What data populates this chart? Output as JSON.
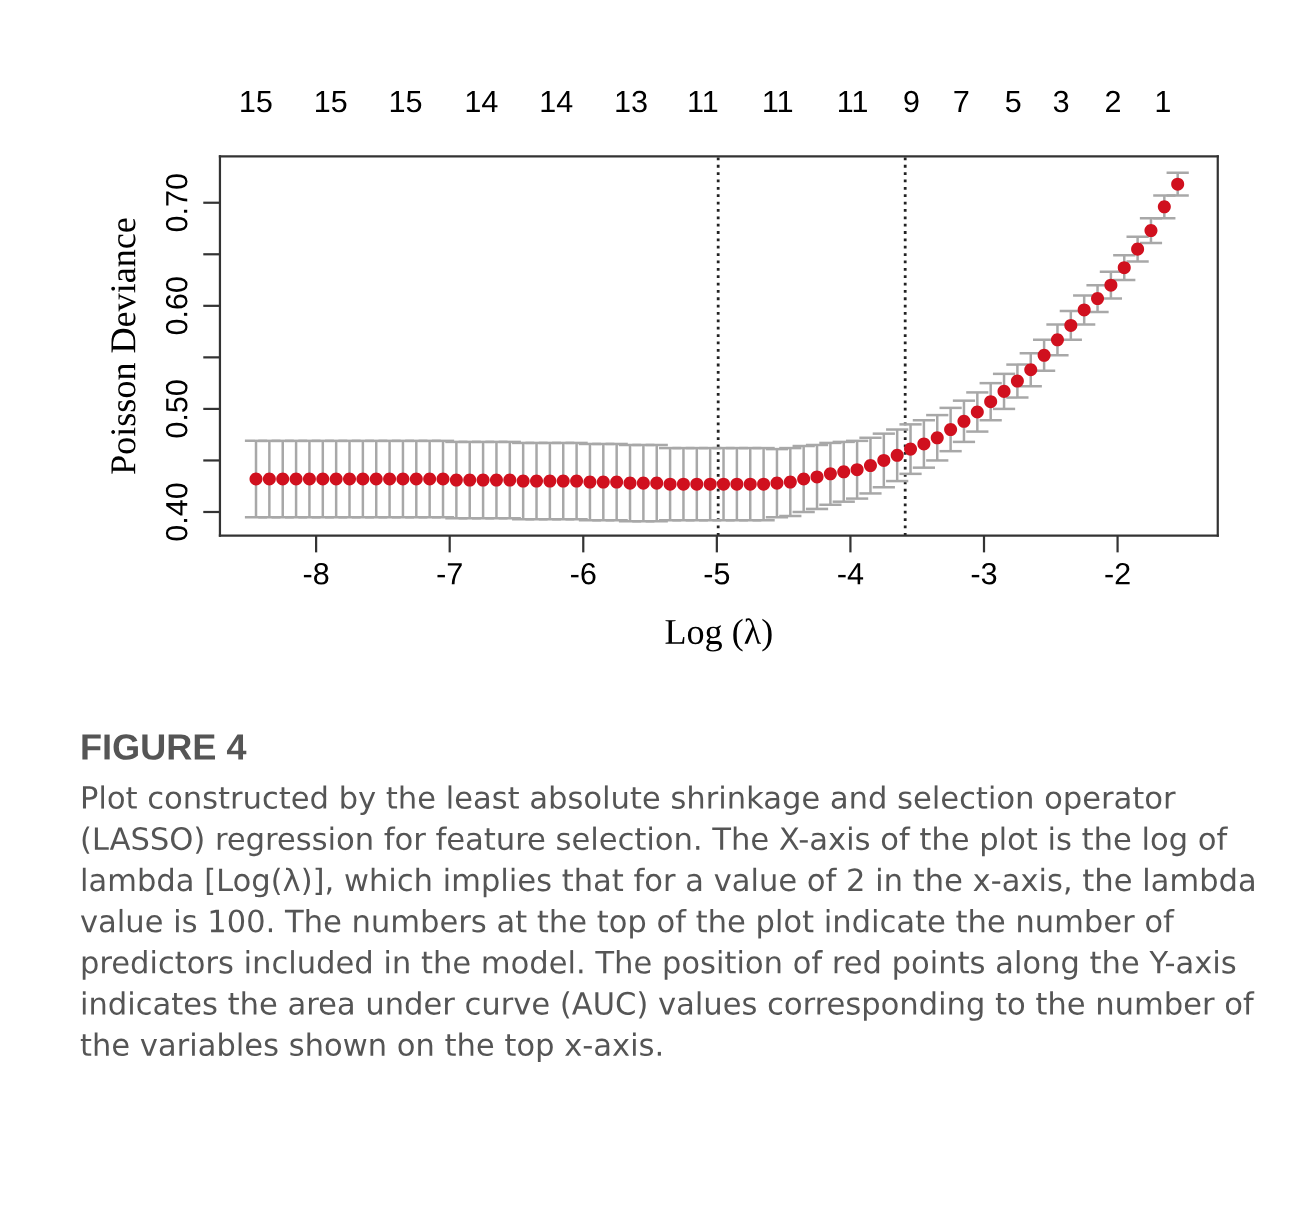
{
  "chart_data": {
    "type": "scatter",
    "title": "FIGURE 4",
    "annotations": [
      "15",
      "15",
      "15",
      "14",
      "14",
      "13",
      "11",
      "11",
      "11",
      "9",
      "7",
      "5",
      "3",
      "2",
      "1",
      "Plot constructed by the least absolute shrinkage and selection operator (LASSO) regression for feature selection. The X-axis of the plot is the log of lambda [Log(λ)], which implies that for a value of 2 in the x-axis, the lambda value is 100. The numbers at the top of the plot indicate the number of predictors included in the model. The position of red points along the Y-axis indicates the area under curve (AUC) values corresponding to the number of the variables shown on the top x-axis."
    ],
    "xlabel": "Log (λ)",
    "ylabel": "Poisson Deviance",
    "x": [
      -8.45,
      -8.35,
      -8.25,
      -8.15,
      -8.05,
      -7.95,
      -7.85,
      -7.75,
      -7.65,
      -7.55,
      -7.45,
      -7.35,
      -7.25,
      -7.15,
      -7.05,
      -6.95,
      -6.85,
      -6.75,
      -6.65,
      -6.55,
      -6.45,
      -6.35,
      -6.25,
      -6.15,
      -6.05,
      -5.95,
      -5.85,
      -5.75,
      -5.65,
      -5.55,
      -5.45,
      -5.35,
      -5.25,
      -5.15,
      -5.05,
      -4.95,
      -4.85,
      -4.75,
      -4.65,
      -4.55,
      -4.45,
      -4.35,
      -4.25,
      -4.15,
      -4.05,
      -3.95,
      -3.85,
      -3.75,
      -3.65,
      -3.55,
      -3.45,
      -3.35,
      -3.25,
      -3.15,
      -3.05,
      -2.95,
      -2.85,
      -2.75,
      -2.65,
      -2.55,
      -2.45,
      -2.35,
      -2.25,
      -2.15,
      -2.05,
      -1.95,
      -1.85,
      -1.75,
      -1.65,
      -1.55
    ],
    "series": [
      {
        "color": "#d0101e",
        "values": [
          0.432,
          0.432,
          0.432,
          0.432,
          0.432,
          0.432,
          0.432,
          0.432,
          0.432,
          0.432,
          0.432,
          0.432,
          0.432,
          0.432,
          0.432,
          0.431,
          0.431,
          0.431,
          0.431,
          0.431,
          0.43,
          0.43,
          0.43,
          0.43,
          0.43,
          0.429,
          0.429,
          0.429,
          0.428,
          0.428,
          0.428,
          0.427,
          0.427,
          0.427,
          0.427,
          0.427,
          0.427,
          0.427,
          0.427,
          0.428,
          0.429,
          0.432,
          0.434,
          0.437,
          0.439,
          0.441,
          0.445,
          0.45,
          0.455,
          0.461,
          0.466,
          0.472,
          0.48,
          0.488,
          0.497,
          0.507,
          0.517,
          0.527,
          0.538,
          0.552,
          0.567,
          0.581,
          0.596,
          0.607,
          0.62,
          0.637,
          0.655,
          0.673,
          0.696,
          0.718
        ],
        "errors": [
          0.037,
          0.037,
          0.037,
          0.037,
          0.037,
          0.037,
          0.037,
          0.037,
          0.037,
          0.037,
          0.037,
          0.037,
          0.037,
          0.037,
          0.037,
          0.037,
          0.037,
          0.037,
          0.037,
          0.037,
          0.037,
          0.037,
          0.037,
          0.037,
          0.037,
          0.037,
          0.037,
          0.037,
          0.037,
          0.037,
          0.037,
          0.035,
          0.035,
          0.035,
          0.035,
          0.035,
          0.035,
          0.035,
          0.035,
          0.033,
          0.033,
          0.032,
          0.031,
          0.03,
          0.029,
          0.028,
          0.027,
          0.026,
          0.025,
          0.024,
          0.023,
          0.022,
          0.021,
          0.02,
          0.019,
          0.018,
          0.017,
          0.016,
          0.016,
          0.015,
          0.015,
          0.014,
          0.014,
          0.013,
          0.013,
          0.012,
          0.012,
          0.012,
          0.011,
          0.011
        ]
      }
    ],
    "marker": "circle",
    "xlim": [
      -8.72,
      -1.25
    ],
    "xticks": [
      -8,
      -7,
      -6,
      -5,
      -4,
      -3,
      -2
    ],
    "ylim": [
      0.377,
      0.745
    ],
    "yticks": [
      {
        "value": 0.4,
        "label": "0.40"
      },
      {
        "value": 0.45,
        "label": null
      },
      {
        "value": 0.5,
        "label": "0.50"
      },
      {
        "value": 0.55,
        "label": null
      },
      {
        "value": 0.6,
        "label": "0.60"
      },
      {
        "value": 0.65,
        "label": null
      },
      {
        "value": 0.7,
        "label": "0.70"
      }
    ],
    "ref_lines": [
      {
        "axis": "x",
        "value": -4.99,
        "color": "#222222",
        "line_style": "dotted"
      },
      {
        "axis": "x",
        "value": -3.59,
        "color": "#222222",
        "line_style": "dotted"
      }
    ],
    "grid": false,
    "legend": false
  }
}
